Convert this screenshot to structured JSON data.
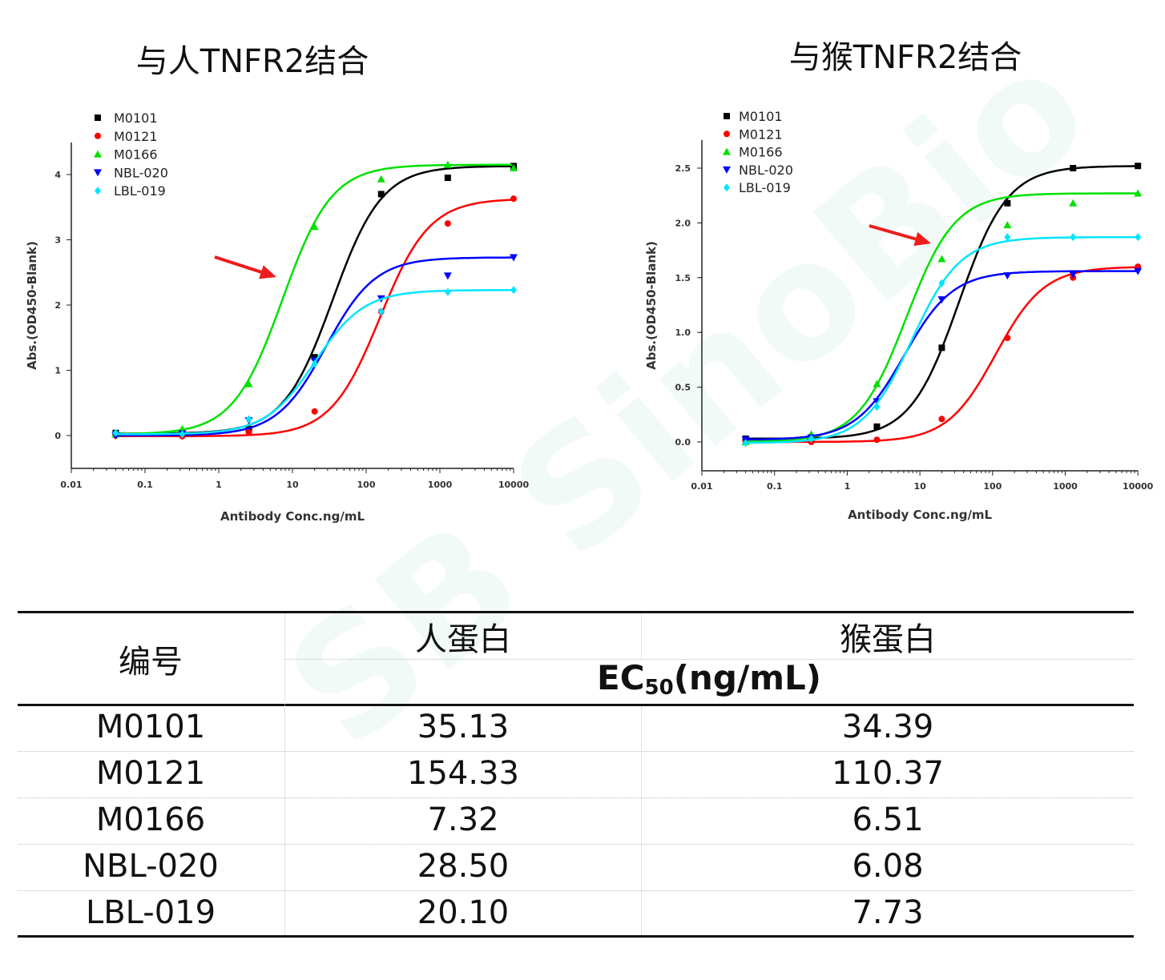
{
  "chart_data": [
    {
      "type": "scatter",
      "title": "与人TNFR2结合",
      "xlabel": "Antibody Conc.ng/mL",
      "ylabel": "Abs.(OD450-Blank)",
      "xscale": "log",
      "xlim": [
        0.01,
        10000
      ],
      "ylim": [
        -0.5,
        4.5
      ],
      "xticks": [
        "0.01",
        "0.1",
        "1",
        "10",
        "100",
        "1000",
        "10000"
      ],
      "yticks": [
        "0",
        "1",
        "2",
        "3",
        "4"
      ],
      "legend_position": "top-left",
      "grid": false,
      "x": [
        0.04,
        0.32,
        2.56,
        20,
        160,
        1280,
        10000
      ],
      "series": [
        {
          "name": "M0101",
          "color": "#000000",
          "marker": "square",
          "values": [
            0.04,
            0.03,
            0.1,
            1.2,
            3.7,
            3.95,
            4.13
          ]
        },
        {
          "name": "M0121",
          "color": "#ff0000",
          "marker": "circle",
          "values": [
            0.0,
            -0.01,
            0.05,
            0.37,
            1.9,
            3.25,
            3.63
          ]
        },
        {
          "name": "M0166",
          "color": "#00e000",
          "marker": "triangle-up",
          "values": [
            0.02,
            0.1,
            0.79,
            3.2,
            3.93,
            4.15,
            4.1
          ]
        },
        {
          "name": "NBL-020",
          "color": "#0000ff",
          "marker": "triangle-down",
          "values": [
            0.0,
            0.03,
            0.23,
            1.15,
            2.1,
            2.45,
            2.73
          ]
        },
        {
          "name": "LBL-019",
          "color": "#00e5ff",
          "marker": "diamond",
          "values": [
            0.04,
            0.02,
            0.25,
            1.1,
            1.9,
            2.2,
            2.23
          ]
        }
      ],
      "annotation": "red-arrow pointing to M0166 curve"
    },
    {
      "type": "scatter",
      "title": "与猴TNFR2结合",
      "xlabel": "Antibody Conc.ng/mL",
      "ylabel": "Abs.(OD450-Blank)",
      "xscale": "log",
      "xlim": [
        0.01,
        10000
      ],
      "ylim": [
        -0.25,
        2.75
      ],
      "xticks": [
        "0.01",
        "0.1",
        "1",
        "10",
        "100",
        "1000",
        "10000"
      ],
      "yticks": [
        "0.0",
        "0.5",
        "1.0",
        "1.5",
        "2.0",
        "2.5"
      ],
      "legend_position": "top-left",
      "grid": false,
      "x": [
        0.04,
        0.32,
        2.56,
        20,
        160,
        1280,
        10000
      ],
      "series": [
        {
          "name": "M0101",
          "color": "#000000",
          "marker": "square",
          "values": [
            0.03,
            0.03,
            0.14,
            0.86,
            2.18,
            2.5,
            2.52
          ]
        },
        {
          "name": "M0121",
          "color": "#ff0000",
          "marker": "circle",
          "values": [
            0.0,
            0.0,
            0.02,
            0.21,
            0.95,
            1.5,
            1.6
          ]
        },
        {
          "name": "M0166",
          "color": "#00e000",
          "marker": "triangle-up",
          "values": [
            0.0,
            0.07,
            0.53,
            1.67,
            1.98,
            2.18,
            2.27
          ]
        },
        {
          "name": "NBL-020",
          "color": "#0000ff",
          "marker": "triangle-down",
          "values": [
            0.02,
            0.04,
            0.37,
            1.3,
            1.52,
            1.53,
            1.56
          ]
        },
        {
          "name": "LBL-019",
          "color": "#00e5ff",
          "marker": "diamond",
          "values": [
            -0.01,
            0.03,
            0.32,
            1.45,
            1.87,
            1.87,
            1.87
          ]
        }
      ],
      "annotation": "red-arrow pointing to M0166 curve"
    }
  ],
  "table": {
    "id_header": "编号",
    "human_header": "人蛋白",
    "monkey_header": "猴蛋白",
    "ec50_prefix": "EC",
    "ec50_sub": "50",
    "ec50_unit": "(ng/mL)",
    "rows": [
      {
        "id": "M0101",
        "human": "35.13",
        "monkey": "34.39"
      },
      {
        "id": "M0121",
        "human": "154.33",
        "monkey": "110.37"
      },
      {
        "id": "M0166",
        "human": "7.32",
        "monkey": "6.51"
      },
      {
        "id": "NBL-020",
        "human": "28.50",
        "monkey": "6.08"
      },
      {
        "id": "LBL-019",
        "human": "20.10",
        "monkey": "7.73"
      }
    ]
  },
  "watermark": "SinoBiological",
  "colors": {
    "arrow": "#ee1c1c",
    "watermark": "#2fb39a"
  }
}
